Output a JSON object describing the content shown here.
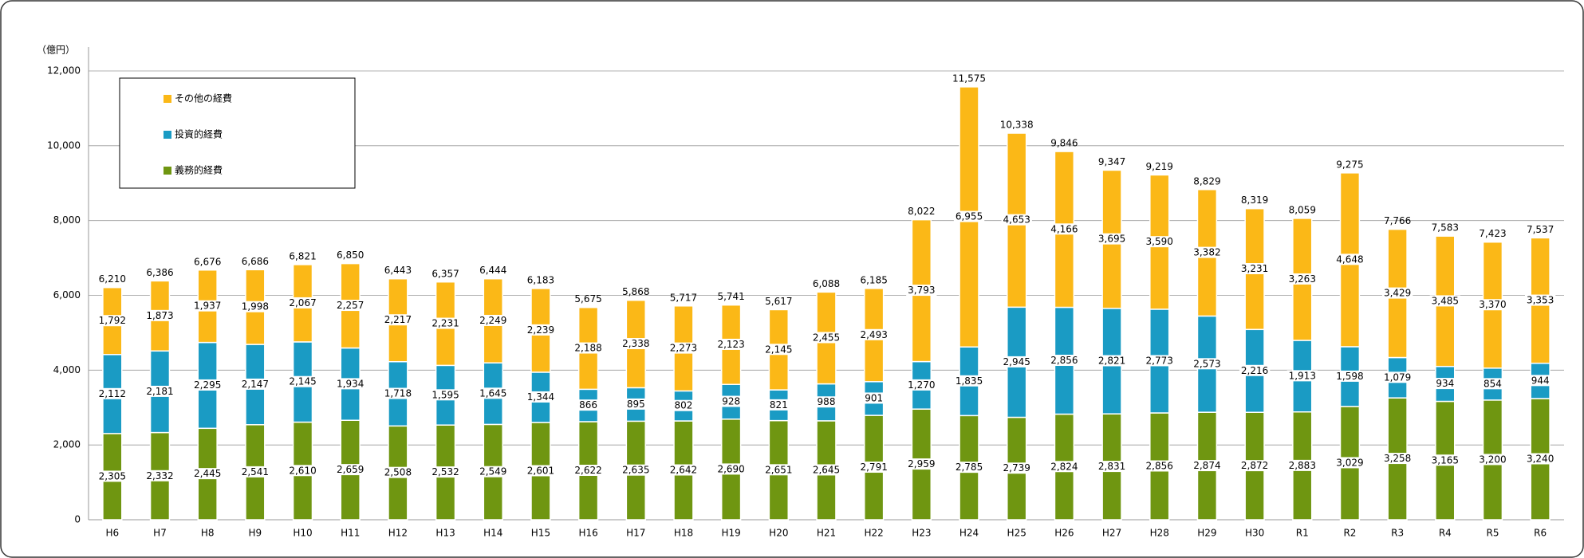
{
  "chart_data": {
    "type": "stacked-bar",
    "y_unit_label": "（億円）",
    "categories": [
      "H6",
      "H7",
      "H8",
      "H9",
      "H10",
      "H11",
      "H12",
      "H13",
      "H14",
      "H15",
      "H16",
      "H17",
      "H18",
      "H19",
      "H20",
      "H21",
      "H22",
      "H23",
      "H24",
      "H25",
      "H26",
      "H27",
      "H28",
      "H29",
      "H30",
      "R1",
      "R2",
      "R3",
      "R4",
      "R5",
      "R6"
    ],
    "series": [
      {
        "name": "義務的経費",
        "color": "#6f9611",
        "values": [
          2305,
          2332,
          2445,
          2541,
          2610,
          2659,
          2508,
          2532,
          2549,
          2601,
          2622,
          2635,
          2642,
          2690,
          2651,
          2645,
          2791,
          2959,
          2785,
          2739,
          2824,
          2831,
          2856,
          2874,
          2872,
          2883,
          3029,
          3258,
          3165,
          3200,
          3240
        ],
        "value_labels": [
          "2,305",
          "2,332",
          "2,445",
          "2,541",
          "2,610",
          "2,659",
          "2,508",
          "2,532",
          "2,549",
          "2,601",
          "2,622",
          "2,635",
          "2,642",
          "2,690",
          "2,651",
          "2,645",
          "2,791",
          "2,959",
          "2,785",
          "2,739",
          "2,824",
          "2,831",
          "2,856",
          "2,874",
          "2,872",
          "2,883",
          "3,029",
          "3,258",
          "3,165",
          "3,200",
          "3,240"
        ]
      },
      {
        "name": "投資的経費",
        "color": "#1a9bc4",
        "values": [
          2112,
          2181,
          2295,
          2147,
          2145,
          1934,
          1718,
          1595,
          1645,
          1344,
          866,
          895,
          802,
          928,
          821,
          988,
          901,
          1270,
          1835,
          2945,
          2856,
          2821,
          2773,
          2573,
          2216,
          1913,
          1598,
          1079,
          934,
          854,
          944
        ],
        "value_labels": [
          "2,112",
          "2,181",
          "2,295",
          "2,147",
          "2,145",
          "1,934",
          "1,718",
          "1,595",
          "1,645",
          "1,344",
          "866",
          "895",
          "802",
          "928",
          "821",
          "988",
          "901",
          "1,270",
          "1,835",
          "2,945",
          "2,856",
          "2,821",
          "2,773",
          "2,573",
          "2,216",
          "1,913",
          "1,598",
          "1,079",
          "934",
          "854",
          "944"
        ]
      },
      {
        "name": "その他の経費",
        "color": "#fbb817",
        "values": [
          1792,
          1873,
          1937,
          1998,
          2067,
          2257,
          2217,
          2231,
          2249,
          2239,
          2188,
          2338,
          2273,
          2123,
          2145,
          2455,
          2493,
          3793,
          6955,
          4653,
          4166,
          3695,
          3590,
          3382,
          3231,
          3263,
          4648,
          3429,
          3485,
          3370,
          3353
        ],
        "value_labels": [
          "1,792",
          "1,873",
          "1,937",
          "1,998",
          "2,067",
          "2,257",
          "2,217",
          "2,231",
          "2,249",
          "2,239",
          "2,188",
          "2,338",
          "2,273",
          "2,123",
          "2,145",
          "2,455",
          "2,493",
          "3,793",
          "6,955",
          "4,653",
          "4,166",
          "3,695",
          "3,590",
          "3,382",
          "3,231",
          "3,263",
          "4,648",
          "3,429",
          "3,485",
          "3,370",
          "3,353"
        ]
      }
    ],
    "totals": {
      "values": [
        6210,
        6386,
        6676,
        6686,
        6821,
        6850,
        6443,
        6357,
        6444,
        6183,
        5675,
        5868,
        5717,
        5741,
        5617,
        6088,
        6185,
        8022,
        11575,
        10338,
        9846,
        9347,
        9219,
        8829,
        8319,
        8059,
        9275,
        7766,
        7583,
        7423,
        7537
      ],
      "value_labels": [
        "6,210",
        "6,386",
        "6,676",
        "6,686",
        "6,821",
        "6,850",
        "6,443",
        "6,357",
        "6,444",
        "6,183",
        "5,675",
        "5,868",
        "5,717",
        "5,741",
        "5,617",
        "6,088",
        "6,185",
        "8,022",
        "11,575",
        "10,338",
        "9,846",
        "9,347",
        "9,219",
        "8,829",
        "8,319",
        "8,059",
        "9,275",
        "7,766",
        "7,583",
        "7,423",
        "7,537"
      ]
    },
    "ylim": [
      0,
      12000
    ],
    "yticks": [
      0,
      {
        "value": 2000,
        "label": "2,000"
      },
      {
        "value": 4000,
        "label": "4,000"
      },
      {
        "value": 6000,
        "label": "6,000"
      },
      {
        "value": 8000,
        "label": "8,000"
      },
      {
        "value": 10000,
        "label": "10,000"
      },
      {
        "value": 12000,
        "label": "12,000"
      }
    ],
    "grid": true,
    "legend": "top-left"
  }
}
